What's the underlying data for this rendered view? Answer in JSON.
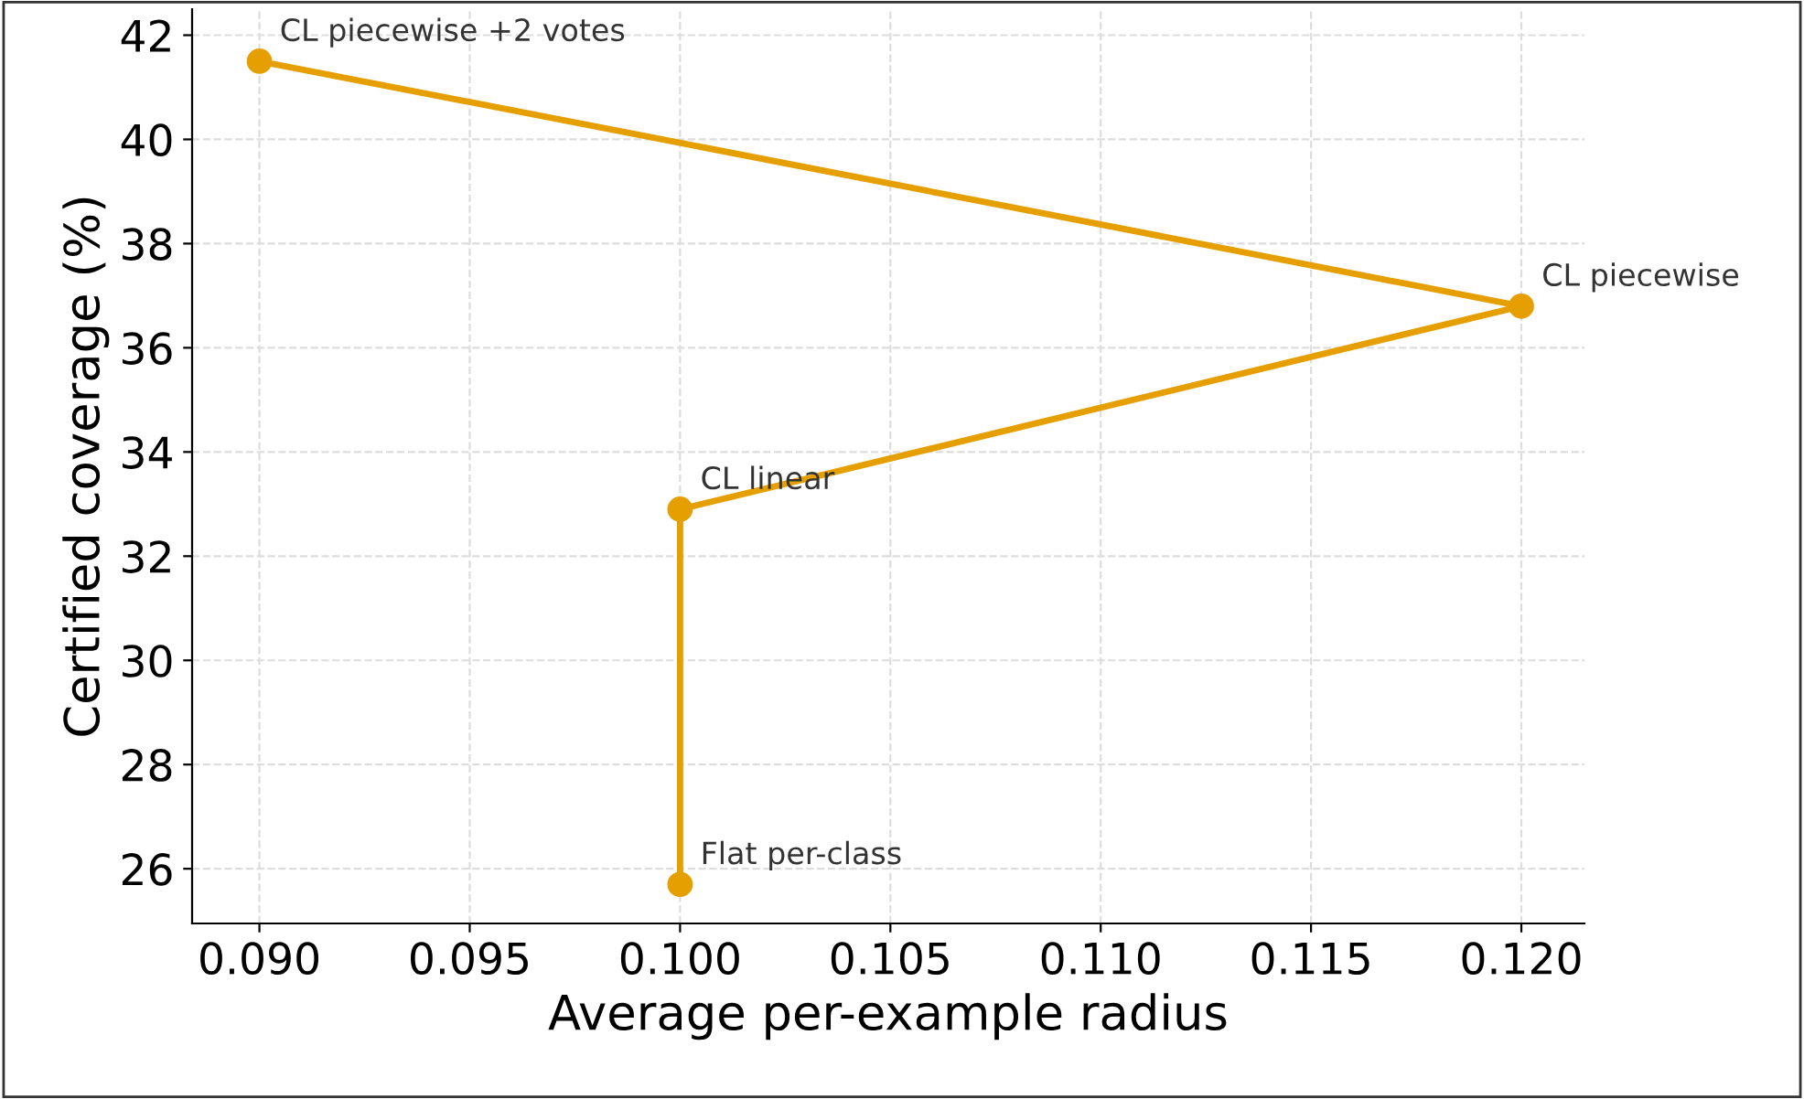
{
  "chart_data": {
    "type": "line",
    "xlabel": "Average per-example radius",
    "ylabel": "Certified coverage (%)",
    "series": [
      {
        "color": "#e69f00",
        "x": [
          0.1,
          0.1,
          0.12,
          0.09
        ],
        "values": [
          25.7,
          32.9,
          36.8,
          41.5
        ]
      }
    ],
    "annotations": [
      {
        "text": "Flat per-class",
        "x": 0.1,
        "y": 25.7
      },
      {
        "text": "CL linear",
        "x": 0.1,
        "y": 32.9
      },
      {
        "text": "CL piecewise",
        "x": 0.12,
        "y": 36.8
      },
      {
        "text": "CL piecewise +2 votes",
        "x": 0.09,
        "y": 41.5
      }
    ],
    "xlim": [
      0.0884,
      0.1215
    ],
    "ylim": [
      24.95,
      42.5
    ],
    "xticks": [
      {
        "value": 0.09,
        "label": "0.090"
      },
      {
        "value": 0.095,
        "label": "0.095"
      },
      {
        "value": 0.1,
        "label": "0.100"
      },
      {
        "value": 0.105,
        "label": "0.105"
      },
      {
        "value": 0.11,
        "label": "0.110"
      },
      {
        "value": 0.115,
        "label": "0.115"
      },
      {
        "value": 0.12,
        "label": "0.120"
      }
    ],
    "yticks": [
      26,
      28,
      30,
      32,
      34,
      36,
      38,
      40,
      42
    ],
    "grid": true,
    "marker": "circle",
    "line_style": "solid"
  }
}
